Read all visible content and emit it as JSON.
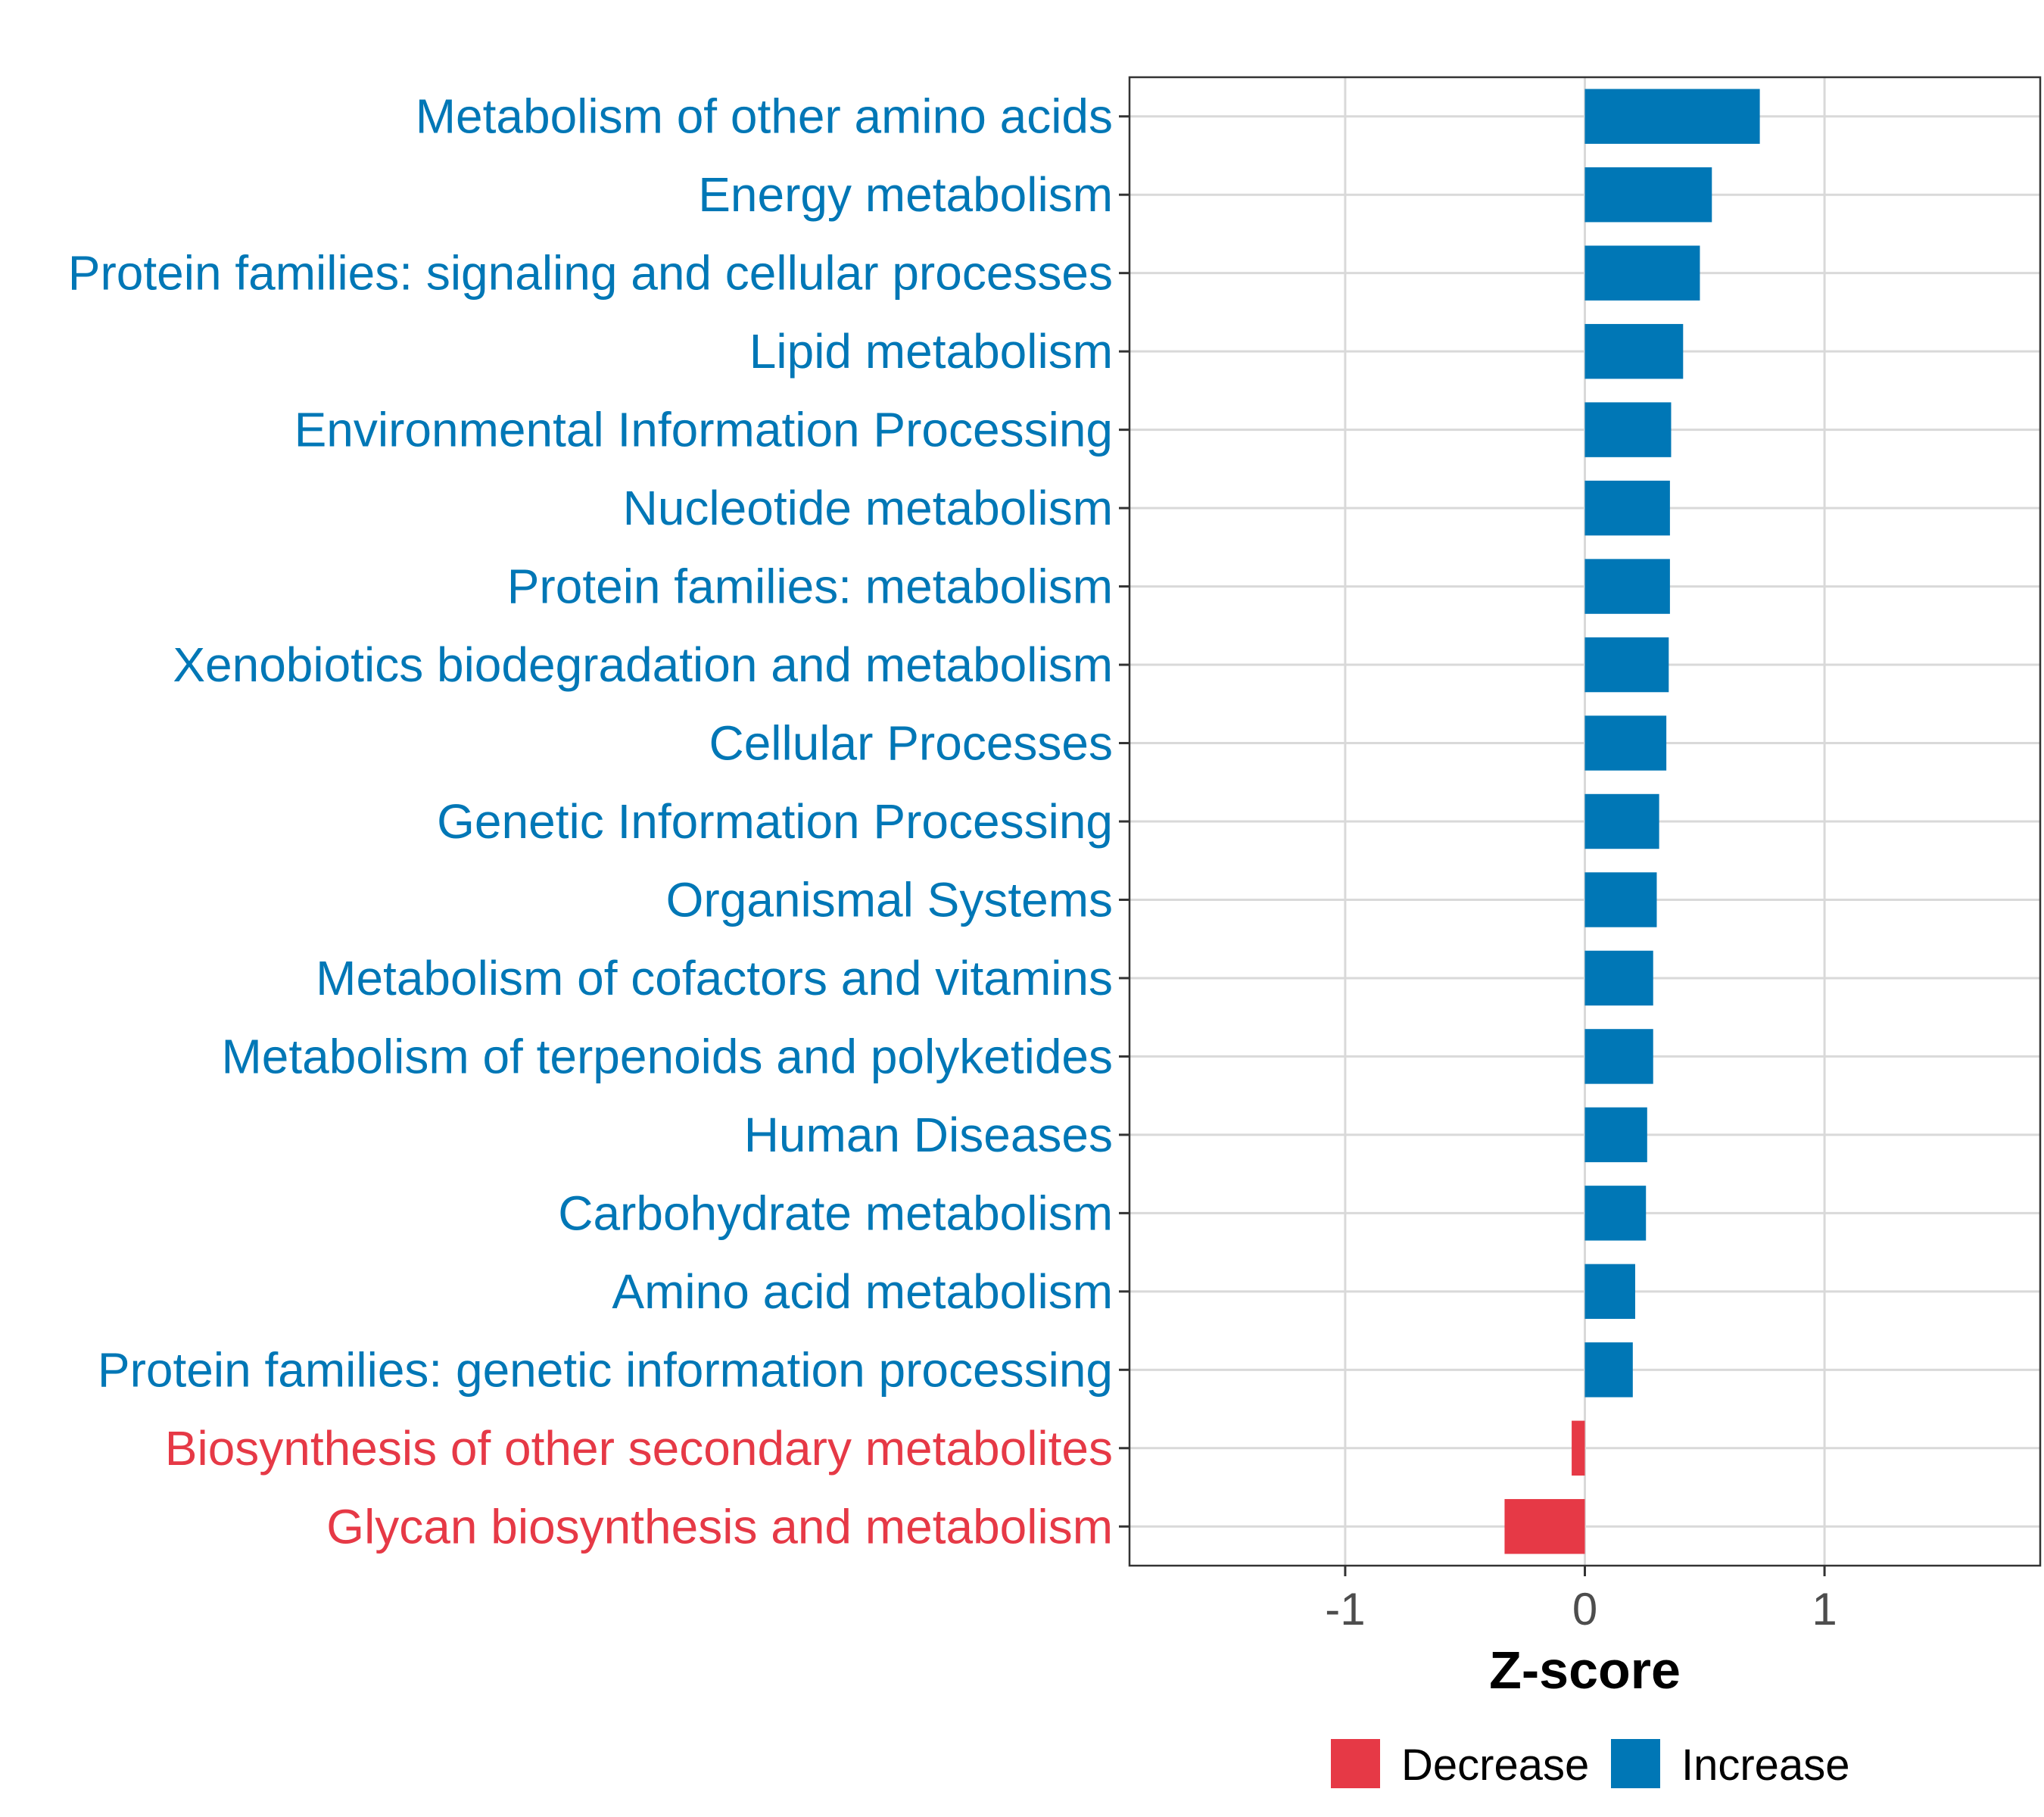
{
  "chart_data": {
    "type": "bar",
    "orientation": "horizontal",
    "xlabel": "Z-score",
    "xlim": [
      -1.9,
      1.9
    ],
    "xticks": [
      -1,
      0,
      1
    ],
    "xtick_labels": [
      "-1",
      "0",
      "1"
    ],
    "grid": true,
    "legend_position": "bottom",
    "colors": {
      "Decrease": "#E63946",
      "Increase": "#0077B6"
    },
    "legend": [
      {
        "label": "Decrease",
        "color": "#E63946"
      },
      {
        "label": "Increase",
        "color": "#0077B6"
      }
    ],
    "categories": [
      "Metabolism of other amino acids",
      "Energy metabolism",
      "Protein families: signaling and cellular processes",
      "Lipid metabolism",
      "Environmental Information Processing",
      "Nucleotide metabolism",
      "Protein families: metabolism",
      "Xenobiotics biodegradation and metabolism",
      "Cellular Processes",
      "Genetic Information Processing",
      "Organismal Systems",
      "Metabolism of cofactors and vitamins",
      "Metabolism of terpenoids and polyketides",
      "Human Diseases",
      "Carbohydrate metabolism",
      "Amino acid metabolism",
      "Protein families: genetic information processing",
      "Biosynthesis of other secondary metabolites",
      "Glycan biosynthesis and metabolism"
    ],
    "values": [
      0.73,
      0.53,
      0.48,
      0.41,
      0.36,
      0.355,
      0.355,
      0.35,
      0.34,
      0.31,
      0.3,
      0.285,
      0.285,
      0.26,
      0.255,
      0.21,
      0.2,
      -0.055,
      -0.335
    ],
    "groups": [
      "Increase",
      "Increase",
      "Increase",
      "Increase",
      "Increase",
      "Increase",
      "Increase",
      "Increase",
      "Increase",
      "Increase",
      "Increase",
      "Increase",
      "Increase",
      "Increase",
      "Increase",
      "Increase",
      "Increase",
      "Decrease",
      "Decrease"
    ]
  }
}
